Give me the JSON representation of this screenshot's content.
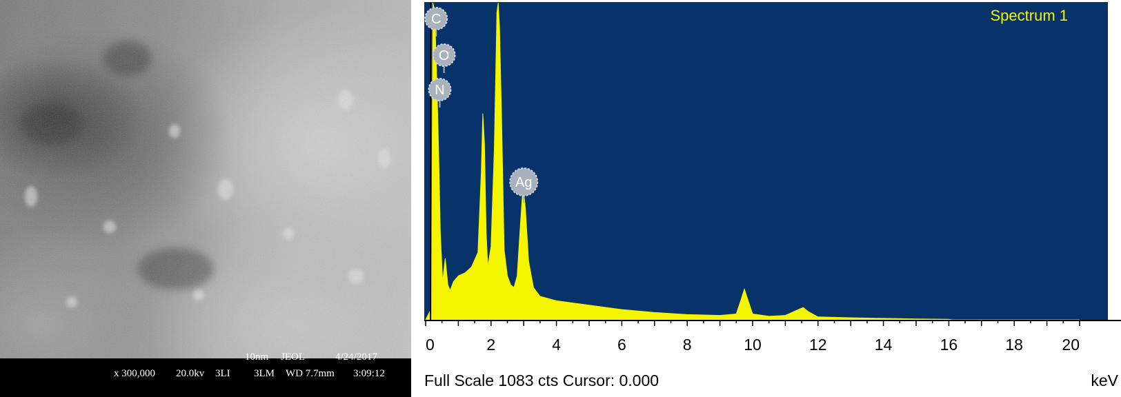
{
  "sem": {
    "scale": "10nm",
    "maker": "JEOL",
    "date": "4/24/2017",
    "magnification": "x 300,000",
    "voltage": "20.0kv",
    "detector": "3LI",
    "mode": "3LM",
    "working_distance": "WD 7.7mm",
    "time": "3:09:12"
  },
  "eds": {
    "spectrum_label": "Spectrum 1",
    "footer": "Full Scale 1083 cts Cursor: 0.000",
    "unit": "keV",
    "colors": {
      "background": "#07336a",
      "spectrum": "#f5f500",
      "label_text": "#f5f500",
      "marker": "#a9b1bd"
    },
    "element_markers": [
      {
        "symbol": "C",
        "energy": 0.28
      },
      {
        "symbol": "O",
        "energy": 0.52
      },
      {
        "symbol": "N",
        "energy": 0.39
      },
      {
        "symbol": "Ag",
        "energy": 2.98
      }
    ]
  },
  "chart_data": {
    "type": "area",
    "title": "Spectrum 1",
    "xlabel": "keV",
    "ylabel": "",
    "xlim": [
      0,
      20
    ],
    "ylim": [
      0,
      1083
    ],
    "x_ticks": [
      "0",
      "2",
      "4",
      "6",
      "8",
      "10",
      "12",
      "14",
      "16",
      "18",
      "20"
    ],
    "grid": false,
    "series": [
      {
        "x": [
          0,
          0.18,
          0.22,
          0.27,
          0.32,
          0.37,
          0.4,
          0.45,
          0.52,
          0.6,
          0.68,
          0.75,
          0.85,
          1.0,
          1.2,
          1.4,
          1.6,
          1.7,
          1.75,
          1.8,
          1.85,
          1.9,
          2.0,
          2.1,
          2.18,
          2.22,
          2.26,
          2.32,
          2.4,
          2.5,
          2.6,
          2.7,
          2.8,
          2.9,
          2.98,
          3.05,
          3.15,
          3.3,
          3.5,
          4.0,
          5.0,
          6.0,
          7.0,
          8.0,
          9.0,
          9.5,
          9.65,
          9.75,
          9.85,
          10.0,
          10.5,
          11.0,
          11.4,
          11.55,
          11.7,
          12.0,
          13.0,
          14.0,
          15.0,
          16.0,
          16.1,
          20.0
        ],
        "values": [
          0,
          40,
          1083,
          1060,
          900,
          700,
          560,
          300,
          130,
          210,
          120,
          100,
          130,
          150,
          160,
          180,
          230,
          500,
          705,
          600,
          300,
          180,
          250,
          580,
          1050,
          1083,
          1000,
          700,
          240,
          150,
          120,
          110,
          150,
          330,
          460,
          380,
          200,
          110,
          80,
          65,
          50,
          35,
          25,
          18,
          15,
          20,
          70,
          105,
          70,
          20,
          12,
          15,
          35,
          42,
          28,
          10,
          7,
          5,
          3,
          2,
          0,
          0
        ]
      }
    ]
  }
}
